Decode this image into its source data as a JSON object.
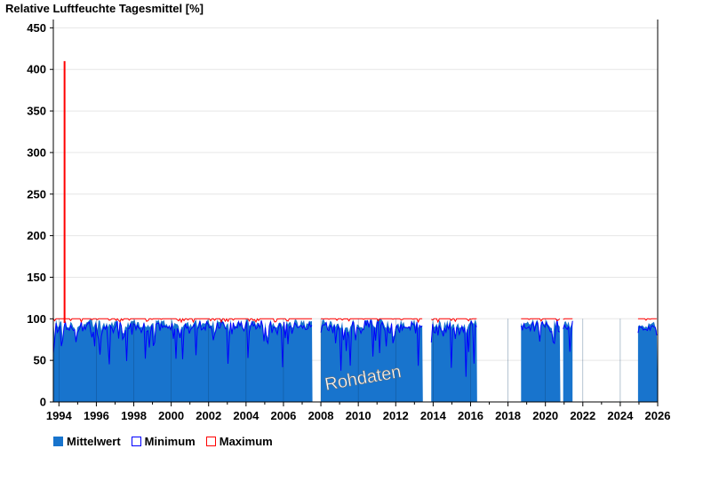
{
  "chart_data": {
    "type": "area",
    "title": "Relative Luftfeuchte Tagesmittel [%]",
    "ylim": [
      0,
      460
    ],
    "yticks": [
      0,
      50,
      100,
      150,
      200,
      250,
      300,
      350,
      400,
      450
    ],
    "xlim": [
      1993.7,
      2026.0
    ],
    "xticks": [
      1994,
      1996,
      1998,
      2000,
      2002,
      2004,
      2006,
      2008,
      2010,
      2012,
      2014,
      2016,
      2018,
      2020,
      2022,
      2024,
      2026
    ],
    "xticklabels": [
      "1994",
      "1996",
      "1998",
      "2000",
      "2002",
      "2004",
      "2006",
      "2008",
      "2010",
      "2012",
      "2014",
      "2016",
      "2018",
      "2020",
      "2022",
      "2024",
      "2026"
    ],
    "grid": true,
    "data_segments": [
      {
        "start": 1993.7,
        "end": 2007.55
      },
      {
        "start": 2008.0,
        "end": 2013.45
      },
      {
        "start": 2013.9,
        "end": 2016.35
      },
      {
        "start": 2018.7,
        "end": 2020.8
      },
      {
        "start": 2020.95,
        "end": 2021.45
      },
      {
        "start": 2024.95,
        "end": 2026.0
      }
    ],
    "series": [
      {
        "name": "Mittelwert",
        "color": "#1874cd",
        "typical_range": [
          75,
          100
        ]
      },
      {
        "name": "Minimum",
        "color": "#0000ff",
        "typical_range": [
          40,
          100
        ]
      },
      {
        "name": "Maximum",
        "color": "#ff0000",
        "typical_value": 100,
        "spike": {
          "x": 1994.3,
          "y": 410
        }
      }
    ],
    "annotation": "Rohdaten",
    "legend": {
      "position": "bottom-left",
      "items": [
        {
          "label": "Mittelwert",
          "fill": "#1874cd",
          "stroke": "#1874cd"
        },
        {
          "label": "Minimum",
          "fill": "#ffffff",
          "stroke": "#0000ff"
        },
        {
          "label": "Maximum",
          "fill": "#ffffff",
          "stroke": "#ff0000"
        }
      ]
    }
  }
}
